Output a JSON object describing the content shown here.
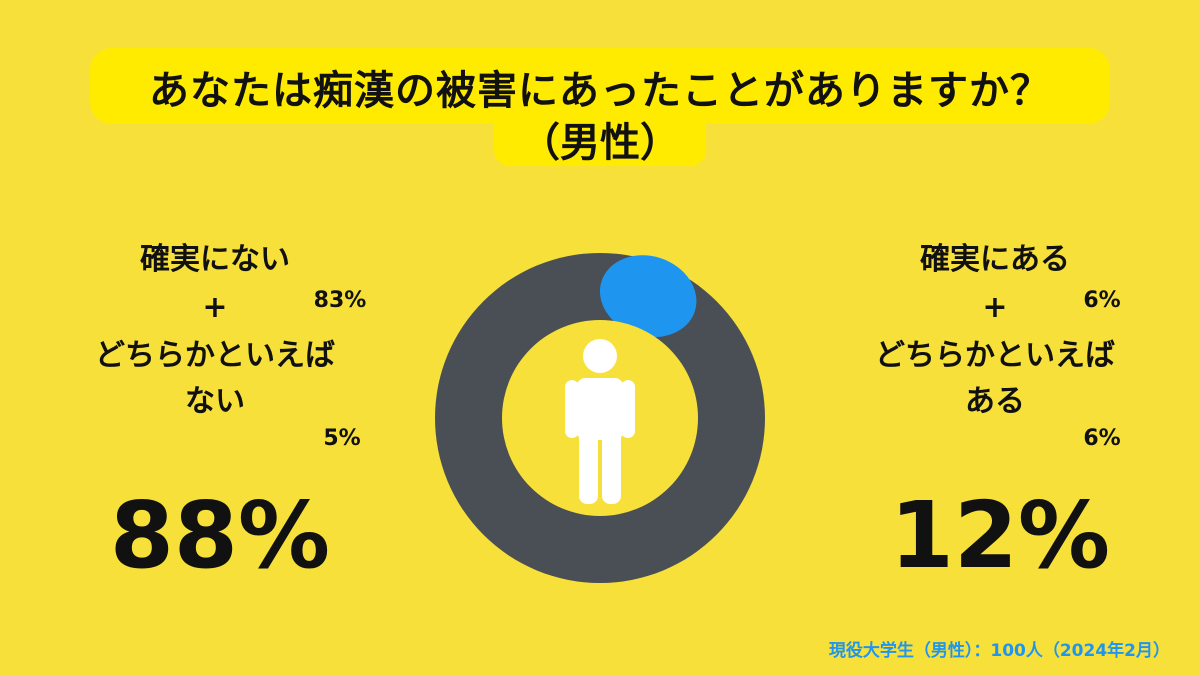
{
  "title": {
    "line1": "あなたは痴漢の被害にあったことがありますか？",
    "line2": "（男性）"
  },
  "left": {
    "cat1": "確実にない",
    "plus": "+",
    "cat2_line1": "どちらかといえば",
    "cat2_line2": "ない",
    "pct1": "83%",
    "pct2": "5%",
    "total": "88%"
  },
  "right": {
    "cat1": "確実にある",
    "plus": "+",
    "cat2_line1": "どちらかといえば",
    "cat2_line2": "ある",
    "pct1": "6%",
    "pct2": "6%",
    "total": "12%"
  },
  "footnote": "現役大学生（男性）：100人（2024年2月）",
  "chart_data": {
    "type": "pie",
    "variant": "donut",
    "categories": [
      "ない",
      "ある"
    ],
    "values": [
      88,
      12
    ],
    "colors": [
      "#4A4F55",
      "#1E96F0"
    ],
    "center_icon": "person-icon"
  }
}
